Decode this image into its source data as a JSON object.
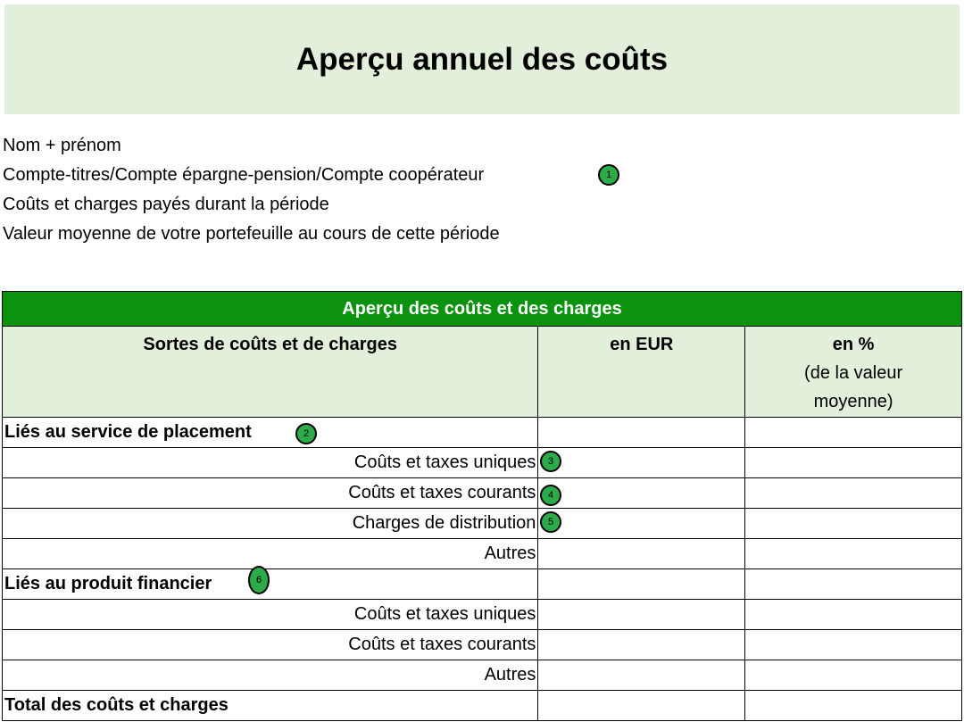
{
  "title": "Aperçu annuel des coûts",
  "info_lines": [
    "Nom + prénom",
    "Compte-titres/Compte épargne-pension/Compte coopérateur",
    "Coûts et charges payés durant la période",
    "Valeur moyenne de votre portefeuille au cours de cette période"
  ],
  "table": {
    "caption": "Aperçu des coûts et des charges",
    "headers": {
      "type": "Sortes de coûts et de charges",
      "eur": "en EUR",
      "pct": "en %",
      "pct_sub1": "(de la valeur",
      "pct_sub2": "moyenne)"
    },
    "rows": [
      {
        "label": "Liés au service de placement",
        "bold": true
      },
      {
        "label": "Coûts et taxes uniques"
      },
      {
        "label": "Coûts et taxes courants"
      },
      {
        "label": "Charges de distribution"
      },
      {
        "label": "Autres"
      },
      {
        "label": "Liés au produit financier",
        "bold": true
      },
      {
        "label": "Coûts et taxes uniques"
      },
      {
        "label": "Coûts et taxes courants"
      },
      {
        "label": "Autres"
      },
      {
        "label": "Total des coûts et charges",
        "bold": true
      }
    ]
  },
  "badges": [
    "1",
    "2",
    "3",
    "4",
    "5",
    "6"
  ],
  "colors": {
    "band": "#e2efda",
    "caption": "#0b9310",
    "badge": "#2bab4a"
  }
}
